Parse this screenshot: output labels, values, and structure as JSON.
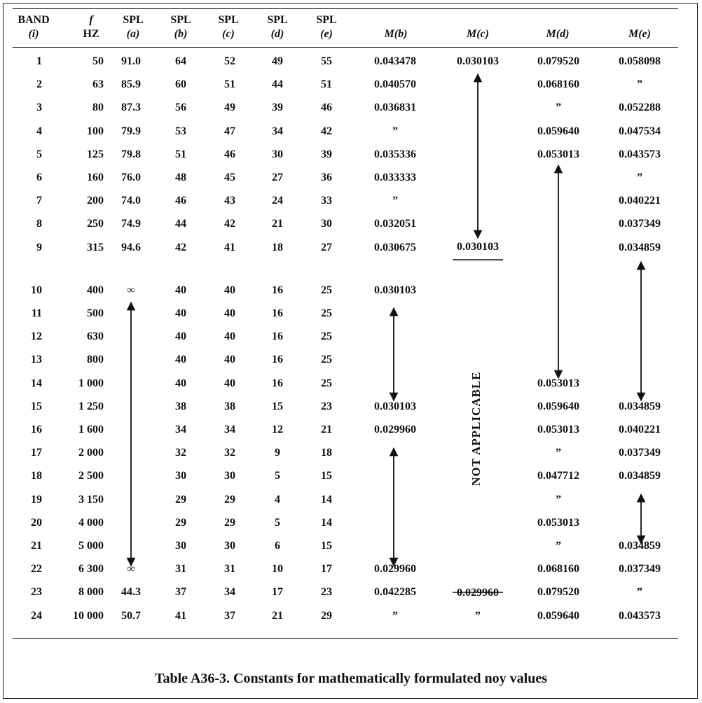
{
  "headers": {
    "band": [
      "BAND",
      "(i)"
    ],
    "f": [
      "f",
      "HZ"
    ],
    "spl_a": [
      "SPL",
      "(a)"
    ],
    "spl_b": [
      "SPL",
      "(b)"
    ],
    "spl_c": [
      "SPL",
      "(c)"
    ],
    "spl_d": [
      "SPL",
      "(d)"
    ],
    "spl_e": [
      "SPL",
      "(e)"
    ],
    "m_b": "M(b)",
    "m_c": "M(c)",
    "m_d": "M(d)",
    "m_e": "M(e)"
  },
  "rows": [
    [
      "1",
      "50",
      "91.0",
      "64",
      "52",
      "49",
      "55",
      "0.043478",
      "0.030103",
      "0.079520",
      "0.058098"
    ],
    [
      "2",
      "63",
      "85.9",
      "60",
      "51",
      "44",
      "51",
      "0.040570",
      "",
      "0.068160",
      "”"
    ],
    [
      "3",
      "80",
      "87.3",
      "56",
      "49",
      "39",
      "46",
      "0.036831",
      "",
      "”",
      "0.052288"
    ],
    [
      "4",
      "100",
      "79.9",
      "53",
      "47",
      "34",
      "42",
      "”",
      "",
      "0.059640",
      "0.047534"
    ],
    [
      "5",
      "125",
      "79.8",
      "51",
      "46",
      "30",
      "39",
      "0.035336",
      "",
      "0.053013",
      "0.043573"
    ],
    [
      "6",
      "160",
      "76.0",
      "48",
      "45",
      "27",
      "36",
      "0.033333",
      "",
      "",
      "”"
    ],
    [
      "7",
      "200",
      "74.0",
      "46",
      "43",
      "24",
      "33",
      "”",
      "",
      "",
      "0.040221"
    ],
    [
      "8",
      "250",
      "74.9",
      "44",
      "42",
      "21",
      "30",
      "0.032051",
      "",
      "",
      "0.037349"
    ],
    [
      "9",
      "315",
      "94.6",
      "42",
      "41",
      "18",
      "27",
      "0.030675",
      "0.030103",
      "",
      "0.034859"
    ],
    [
      "10",
      "400",
      "∞",
      "40",
      "40",
      "16",
      "25",
      "0.030103",
      "",
      "",
      ""
    ],
    [
      "11",
      "500",
      "",
      "40",
      "40",
      "16",
      "25",
      "",
      "",
      "",
      ""
    ],
    [
      "12",
      "630",
      "",
      "40",
      "40",
      "16",
      "25",
      "",
      "",
      "",
      ""
    ],
    [
      "13",
      "800",
      "",
      "40",
      "40",
      "16",
      "25",
      "",
      "",
      "",
      ""
    ],
    [
      "14",
      "1 000",
      "",
      "40",
      "40",
      "16",
      "25",
      "",
      "",
      "0.053013",
      ""
    ],
    [
      "15",
      "1 250",
      "",
      "38",
      "38",
      "15",
      "23",
      "0.030103",
      "",
      "0.059640",
      "0.034859"
    ],
    [
      "16",
      "1 600",
      "",
      "34",
      "34",
      "12",
      "21",
      "0.029960",
      "",
      "0.053013",
      "0.040221"
    ],
    [
      "17",
      "2 000",
      "",
      "32",
      "32",
      "9",
      "18",
      "",
      "",
      "”",
      "0.037349"
    ],
    [
      "18",
      "2 500",
      "",
      "30",
      "30",
      "5",
      "15",
      "",
      "",
      "0.047712",
      "0.034859"
    ],
    [
      "19",
      "3 150",
      "",
      "29",
      "29",
      "4",
      "14",
      "",
      "",
      "”",
      ""
    ],
    [
      "20",
      "4 000",
      "",
      "29",
      "29",
      "5",
      "14",
      "",
      "",
      "0.053013",
      ""
    ],
    [
      "21",
      "5 000",
      "",
      "30",
      "30",
      "6",
      "15",
      "",
      "",
      "”",
      "0.034859"
    ],
    [
      "22",
      "6 300",
      "∞",
      "31",
      "31",
      "10",
      "17",
      "0.029960",
      "",
      "0.068160",
      "0.037349"
    ],
    [
      "23",
      "8 000",
      "44.3",
      "37",
      "34",
      "17",
      "23",
      "0.042285",
      "0.029960",
      "0.079520",
      "”"
    ],
    [
      "24",
      "10 000",
      "50.7",
      "41",
      "37",
      "21",
      "29",
      "”",
      "”",
      "0.059640",
      "0.043573"
    ]
  ],
  "not_applicable": "NOT APPLICABLE",
  "caption": "Table A36-3.  Constants for mathematically formulated noy values"
}
